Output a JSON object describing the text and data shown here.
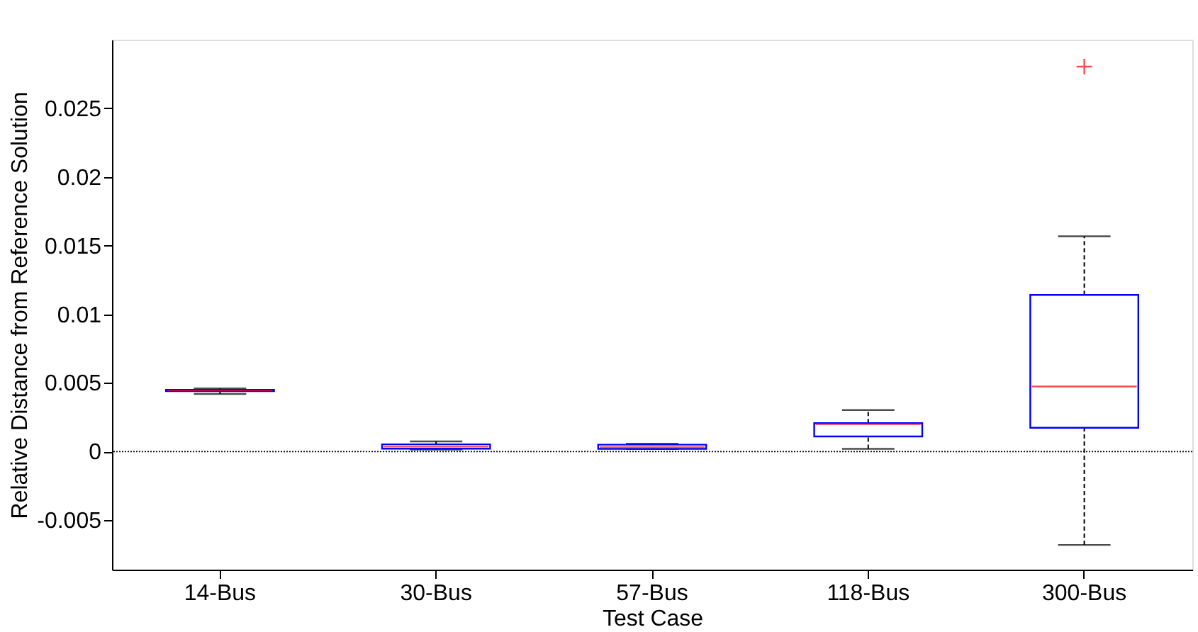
{
  "chart_data": {
    "type": "box",
    "xlabel": "Test Case",
    "ylabel": "Relative Distance from Reference Solution",
    "categories": [
      "14-Bus",
      "30-Bus",
      "57-Bus",
      "118-Bus",
      "300-Bus"
    ],
    "boxes": [
      {
        "low": 0.0042,
        "q1": 0.0044,
        "median": 0.00445,
        "q3": 0.0045,
        "high": 0.0046
      },
      {
        "low": 0.00015,
        "q1": 0.00021,
        "median": 0.00036,
        "q3": 0.00053,
        "high": 0.00074
      },
      {
        "low": 0.00018,
        "q1": 0.0002,
        "median": 0.00032,
        "q3": 0.0005,
        "high": 0.00057
      },
      {
        "low": 0.0002,
        "q1": 0.0011,
        "median": 0.002,
        "q3": 0.00207,
        "high": 0.00302
      },
      {
        "low": -0.0068,
        "q1": 0.00173,
        "median": 0.00474,
        "q3": 0.01141,
        "high": 0.01568,
        "outliers": [
          0.02804
        ]
      }
    ],
    "color": "#0000ff",
    "ylim": [
      -0.0086,
      0.03
    ],
    "yticks": [
      -0.005,
      0,
      0.005,
      0.01,
      0.015,
      0.02,
      0.025
    ],
    "ref_lines": [
      {
        "axis": "y",
        "value": 0,
        "line_style": "dotted",
        "color": "#000000"
      }
    ],
    "grid": false
  }
}
